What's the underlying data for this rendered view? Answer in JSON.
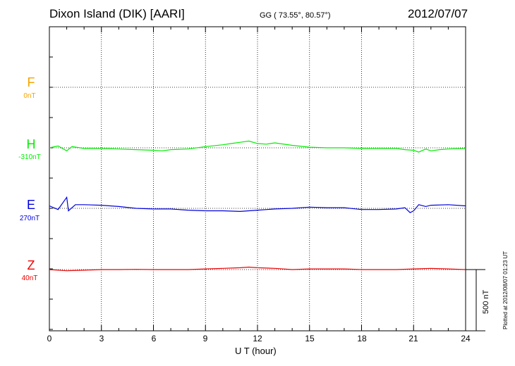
{
  "header": {
    "title": "Dixon Island (DIK)  [AARI]",
    "coords": "GG ( 73.55°,  80.57°)",
    "date": "2012/07/07",
    "plotted": "Plotted at 2012/08/07 01:23 UT",
    "scale_label": "500 nT"
  },
  "colors": {
    "F": "#f5a300",
    "H": "#00ee00",
    "E": "#0000dd",
    "Z": "#ee0000"
  },
  "chart_data": {
    "type": "line",
    "xlabel": "U T (hour)",
    "xlim": [
      0,
      24
    ],
    "xticks": [
      "0",
      "3",
      "6",
      "9",
      "12",
      "15",
      "18",
      "21",
      "24"
    ],
    "scale_bar_nT": 500,
    "components": [
      {
        "name": "F",
        "baseline": "0nT",
        "values": []
      },
      {
        "name": "H",
        "baseline": "-310nT",
        "x": [
          0,
          0.5,
          1,
          1.3,
          2,
          3,
          4,
          5,
          6,
          6.5,
          7,
          8,
          9,
          10,
          10.5,
          11,
          11.5,
          12,
          12.5,
          13,
          14,
          15,
          16,
          17,
          18,
          19,
          20,
          20.5,
          21,
          21.3,
          21.7,
          22,
          22.5,
          23,
          24
        ],
        "y": [
          0,
          15,
          -25,
          10,
          -5,
          -5,
          -10,
          -15,
          -20,
          -25,
          -15,
          -10,
          10,
          25,
          35,
          45,
          55,
          35,
          30,
          40,
          20,
          5,
          0,
          0,
          -5,
          -5,
          -5,
          -15,
          -20,
          -35,
          -10,
          -25,
          -15,
          -10,
          -5
        ]
      },
      {
        "name": "E",
        "baseline": "270nT",
        "x": [
          0,
          0.5,
          1,
          1.1,
          1.5,
          2,
          3,
          4,
          5,
          6,
          7,
          8,
          9,
          10,
          11,
          12,
          13,
          14,
          15,
          16,
          17,
          18,
          19,
          20,
          20.5,
          20.8,
          21,
          21.3,
          21.7,
          22,
          23,
          24
        ],
        "y": [
          20,
          -10,
          90,
          -20,
          30,
          30,
          25,
          15,
          0,
          -5,
          -5,
          -15,
          -20,
          -20,
          -25,
          -15,
          -5,
          0,
          10,
          5,
          5,
          -10,
          -10,
          -5,
          5,
          -35,
          -20,
          30,
          15,
          25,
          30,
          20
        ]
      },
      {
        "name": "Z",
        "baseline": "40nT",
        "x": [
          0,
          1,
          2,
          3,
          4,
          5,
          6,
          7,
          8,
          9,
          10,
          11,
          11.5,
          12,
          13,
          14,
          15,
          16,
          17,
          18,
          19,
          20,
          21,
          22,
          23,
          24
        ],
        "y": [
          0,
          -10,
          -5,
          0,
          0,
          2,
          0,
          0,
          0,
          5,
          10,
          15,
          20,
          15,
          10,
          0,
          5,
          5,
          5,
          0,
          0,
          0,
          5,
          10,
          5,
          0
        ]
      }
    ]
  }
}
